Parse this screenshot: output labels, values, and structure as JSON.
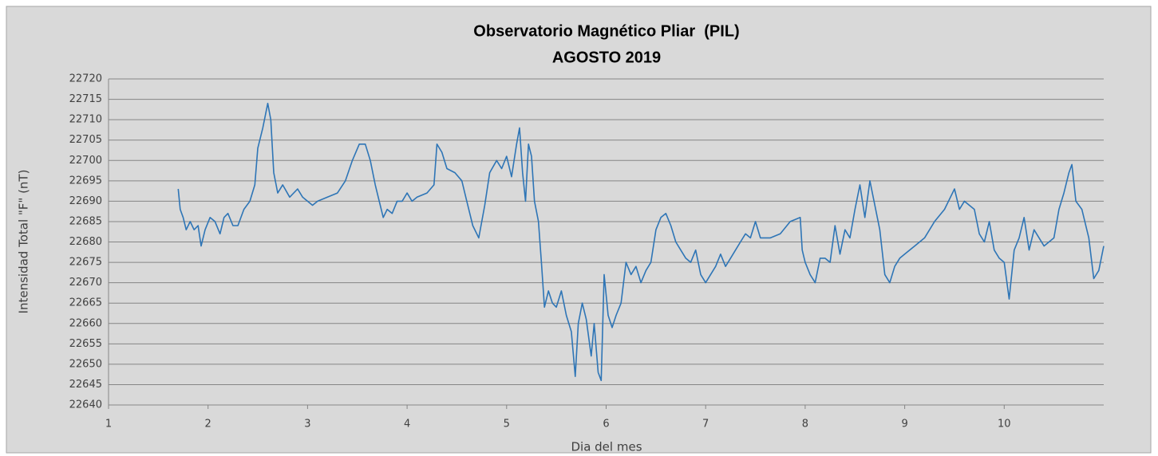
{
  "chart_data": {
    "type": "line",
    "title": "Observatorio Magnético Pliar  (PIL)",
    "subtitle": "AGOSTO 2019",
    "x_label": "Dia del mes",
    "y_label": "Intensidad Total \"F\" (nT)",
    "xlim": [
      1,
      11
    ],
    "xticks": [
      1,
      2,
      3,
      4,
      5,
      6,
      7,
      8,
      9,
      10
    ],
    "ylim": [
      22640,
      22720
    ],
    "yticks": [
      22640,
      22645,
      22650,
      22655,
      22660,
      22665,
      22670,
      22675,
      22680,
      22685,
      22690,
      22695,
      22700,
      22705,
      22710,
      22715,
      22720
    ],
    "grid": true,
    "x": [
      1.7,
      1.72,
      1.75,
      1.78,
      1.82,
      1.86,
      1.9,
      1.93,
      1.97,
      2.02,
      2.07,
      2.12,
      2.16,
      2.2,
      2.25,
      2.3,
      2.36,
      2.42,
      2.47,
      2.5,
      2.55,
      2.6,
      2.63,
      2.66,
      2.7,
      2.75,
      2.82,
      2.9,
      2.95,
      3.0,
      3.05,
      3.1,
      3.2,
      3.3,
      3.38,
      3.45,
      3.52,
      3.58,
      3.63,
      3.68,
      3.72,
      3.76,
      3.8,
      3.85,
      3.9,
      3.95,
      4.0,
      4.05,
      4.1,
      4.2,
      4.27,
      4.3,
      4.35,
      4.4,
      4.48,
      4.55,
      4.6,
      4.66,
      4.72,
      4.78,
      4.83,
      4.9,
      4.95,
      5.0,
      5.05,
      5.1,
      5.13,
      5.16,
      5.19,
      5.22,
      5.25,
      5.28,
      5.32,
      5.35,
      5.38,
      5.42,
      5.46,
      5.5,
      5.55,
      5.6,
      5.65,
      5.69,
      5.72,
      5.76,
      5.8,
      5.85,
      5.88,
      5.92,
      5.95,
      5.98,
      6.02,
      6.06,
      6.1,
      6.15,
      6.2,
      6.25,
      6.3,
      6.35,
      6.4,
      6.45,
      6.5,
      6.55,
      6.6,
      6.65,
      6.7,
      6.75,
      6.8,
      6.85,
      6.9,
      6.95,
      7.0,
      7.05,
      7.1,
      7.15,
      7.2,
      7.25,
      7.3,
      7.35,
      7.4,
      7.45,
      7.5,
      7.55,
      7.65,
      7.75,
      7.85,
      7.95,
      7.97,
      8.0,
      8.05,
      8.1,
      8.15,
      8.2,
      8.25,
      8.3,
      8.35,
      8.4,
      8.45,
      8.5,
      8.55,
      8.6,
      8.65,
      8.7,
      8.75,
      8.8,
      8.85,
      8.9,
      8.95,
      9.0,
      9.1,
      9.2,
      9.3,
      9.4,
      9.5,
      9.55,
      9.6,
      9.7,
      9.75,
      9.8,
      9.85,
      9.9,
      9.95,
      10.0,
      10.05,
      10.1,
      10.15,
      10.2,
      10.25,
      10.3,
      10.4,
      10.5,
      10.55,
      10.6,
      10.65,
      10.68,
      10.72,
      10.78,
      10.85,
      10.9,
      10.95,
      11.0
    ],
    "series": [
      {
        "color": "#2e75b6",
        "values": [
          22693,
          22688,
          22686,
          22683,
          22685,
          22683,
          22684,
          22679,
          22683,
          22686,
          22685,
          22682,
          22686,
          22687,
          22684,
          22684,
          22688,
          22690,
          22694,
          22703,
          22708,
          22714,
          22710,
          22697,
          22692,
          22694,
          22691,
          22693,
          22691,
          22690,
          22689,
          22690,
          22691,
          22692,
          22695,
          22700,
          22704,
          22704,
          22700,
          22694,
          22690,
          22686,
          22688,
          22687,
          22690,
          22690,
          22692,
          22690,
          22691,
          22692,
          22694,
          22704,
          22702,
          22698,
          22697,
          22695,
          22690,
          22684,
          22681,
          22689,
          22697,
          22700,
          22698,
          22701,
          22696,
          22704,
          22708,
          22697,
          22690,
          22704,
          22701,
          22690,
          22685,
          22675,
          22664,
          22668,
          22665,
          22664,
          22668,
          22662,
          22658,
          22647,
          22660,
          22665,
          22661,
          22652,
          22660,
          22648,
          22646,
          22672,
          22662,
          22659,
          22662,
          22665,
          22675,
          22672,
          22674,
          22670,
          22673,
          22675,
          22683,
          22686,
          22687,
          22684,
          22680,
          22678,
          22676,
          22675,
          22678,
          22672,
          22670,
          22672,
          22674,
          22677,
          22674,
          22676,
          22678,
          22680,
          22682,
          22681,
          22685,
          22681,
          22681,
          22682,
          22685,
          22686,
          22678,
          22675,
          22672,
          22670,
          22676,
          22676,
          22675,
          22684,
          22677,
          22683,
          22681,
          22688,
          22694,
          22686,
          22695,
          22689,
          22683,
          22672,
          22670,
          22674,
          22676,
          22677,
          22679,
          22681,
          22685,
          22688,
          22693,
          22688,
          22690,
          22688,
          22682,
          22680,
          22685,
          22678,
          22676,
          22675,
          22666,
          22678,
          22681,
          22686,
          22678,
          22683,
          22679,
          22681,
          22688,
          22692,
          22697,
          22699,
          22690,
          22688,
          22681,
          22671,
          22673,
          22679
        ]
      }
    ]
  }
}
